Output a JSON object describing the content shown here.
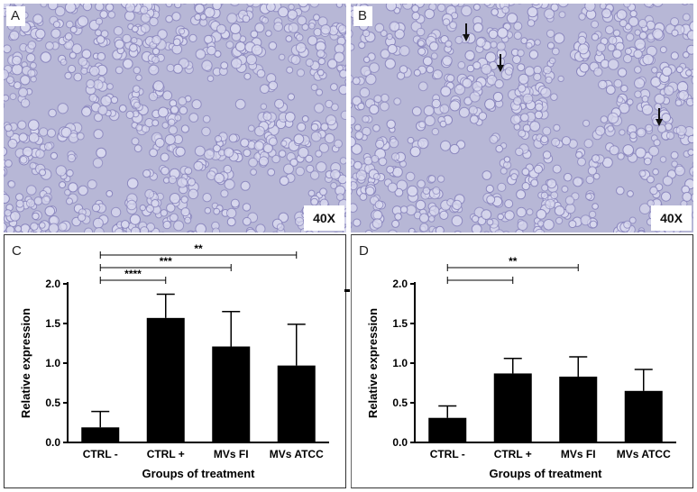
{
  "photos": [
    {
      "letter": "A",
      "magnification": "40X"
    },
    {
      "letter": "B",
      "magnification": "40X"
    }
  ],
  "colors": {
    "bar": "#000000",
    "photo_bg": "#b7b7d6",
    "cell_fill": "#d9d9ef",
    "cell_edge": "#8a86be"
  },
  "chart_data": [
    {
      "type": "bar",
      "panel": "C",
      "categories": [
        "CTRL -",
        "CTRL +",
        "MVs FI",
        "MVs ATCC"
      ],
      "values": [
        0.19,
        1.57,
        1.21,
        0.97
      ],
      "errors": [
        0.2,
        0.3,
        0.44,
        0.52
      ],
      "xlabel": "Groups of treatment",
      "ylabel": "Relative expression",
      "ylim": [
        0,
        2.0
      ],
      "yticks": [
        "0.0",
        "0.5",
        "1.0",
        "1.5",
        "2.0"
      ],
      "significance": [
        {
          "from": 0,
          "to": 1,
          "label": "****"
        },
        {
          "from": 0,
          "to": 2,
          "label": "***"
        },
        {
          "from": 0,
          "to": 3,
          "label": "**"
        }
      ]
    },
    {
      "type": "bar",
      "panel": "D",
      "categories": [
        "CTRL -",
        "CTRL +",
        "MVs FI",
        "MVs ATCC"
      ],
      "values": [
        0.31,
        0.87,
        0.83,
        0.65
      ],
      "errors": [
        0.15,
        0.19,
        0.25,
        0.27
      ],
      "xlabel": "Groups of treatment",
      "ylabel": "Relative expression",
      "ylim": [
        0,
        2.0
      ],
      "yticks": [
        "0.0",
        "0.5",
        "1.0",
        "1.5",
        "2.0"
      ],
      "significance": [
        {
          "from": 0,
          "to": 1,
          "label": ""
        },
        {
          "from": 0,
          "to": 2,
          "label": "**"
        }
      ]
    }
  ]
}
